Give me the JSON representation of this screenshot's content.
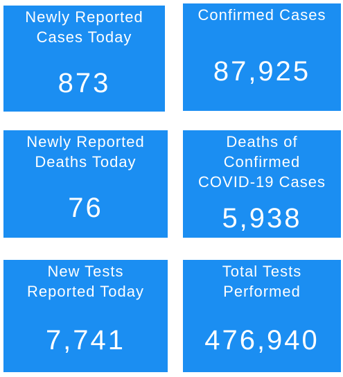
{
  "tiles": [
    {
      "label_lines": [
        "Newly Reported",
        "Cases Today"
      ],
      "value": "873"
    },
    {
      "label_lines": [
        "Confirmed Cases"
      ],
      "value": "87,925"
    },
    {
      "label_lines": [
        "Newly Reported",
        "Deaths Today"
      ],
      "value": "76"
    },
    {
      "label_lines": [
        "Deaths of",
        "Confirmed",
        "COVID-19 Cases"
      ],
      "value": "5,938"
    },
    {
      "label_lines": [
        "New Tests",
        "Reported Today"
      ],
      "value": "7,741"
    },
    {
      "label_lines": [
        "Total Tests",
        "Performed"
      ],
      "value": "476,940"
    }
  ]
}
